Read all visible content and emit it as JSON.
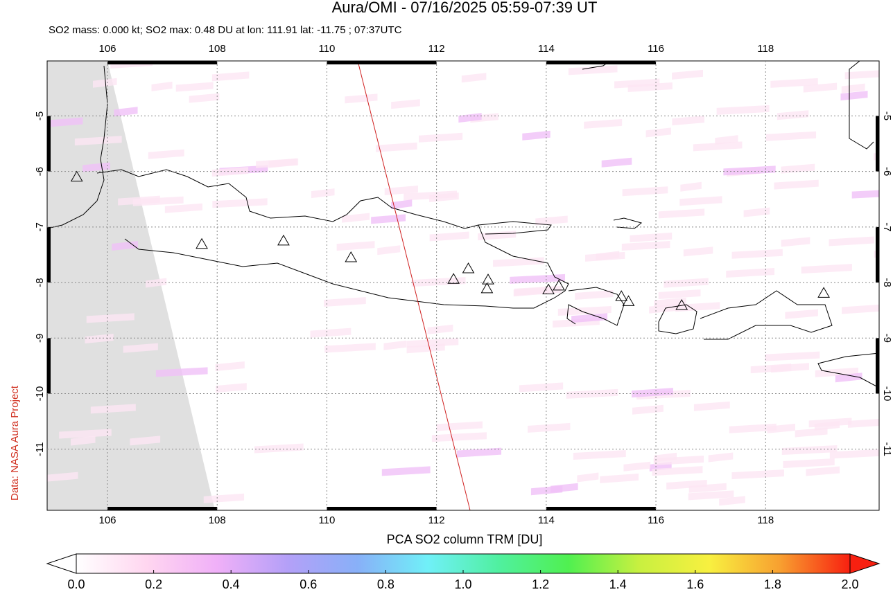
{
  "chart_data": {
    "type": "map",
    "title": "Aura/OMI - 07/16/2025 05:59-07:39 UT",
    "subtitle": "SO2 mass: 0.000 kt; SO2 max: 0.48 DU at lon: 111.91 lat: -11.75 ; 07:37UTC",
    "credit": "Data: NASA Aura Project",
    "xlim": [
      104.9,
      120.07
    ],
    "ylim": [
      -12.1,
      -4.01
    ],
    "xticks": [
      106,
      108,
      110,
      112,
      114,
      116,
      118
    ],
    "yticks": [
      -5,
      -6,
      -7,
      -8,
      -9,
      -10,
      -11
    ],
    "grid": true,
    "volcanoes": {
      "marker": "triangle",
      "x": [
        105.44,
        107.72,
        109.21,
        110.44,
        112.31,
        112.58,
        112.94,
        112.92,
        114.04,
        114.23,
        115.37,
        115.5,
        116.47,
        119.06
      ],
      "y": [
        -6.1,
        -7.31,
        -7.25,
        -7.55,
        -7.94,
        -7.75,
        -7.95,
        -8.11,
        -8.13,
        -8.06,
        -8.25,
        -8.34,
        -8.41,
        -8.19
      ]
    },
    "colorbar": {
      "label": "PCA SO2 column TRM [DU]",
      "lim": [
        0,
        2
      ],
      "colors": [
        "#ffffff",
        "#ffd6f0",
        "#f0b0f8",
        "#b4a0f8",
        "#88b0f8",
        "#70f0f8",
        "#50f0a0",
        "#50f050",
        "#c8f040",
        "#f8f040",
        "#f8a030",
        "#f82010"
      ],
      "ticks": [
        {
          "value": 0,
          "label": "0.0"
        },
        {
          "value": 0.2,
          "label": "0.2"
        },
        {
          "value": 0.4,
          "label": "0.4"
        },
        {
          "value": 0.6,
          "label": "0.6"
        },
        {
          "value": 0.8,
          "label": "0.8"
        },
        {
          "value": 1,
          "label": "1.0"
        },
        {
          "value": 1.2,
          "label": "1.2"
        },
        {
          "value": 1.4,
          "label": "1.4"
        },
        {
          "value": 1.6,
          "label": "1.6"
        },
        {
          "value": 1.8,
          "label": "1.8"
        },
        {
          "value": 2,
          "label": "2.0"
        }
      ]
    }
  }
}
